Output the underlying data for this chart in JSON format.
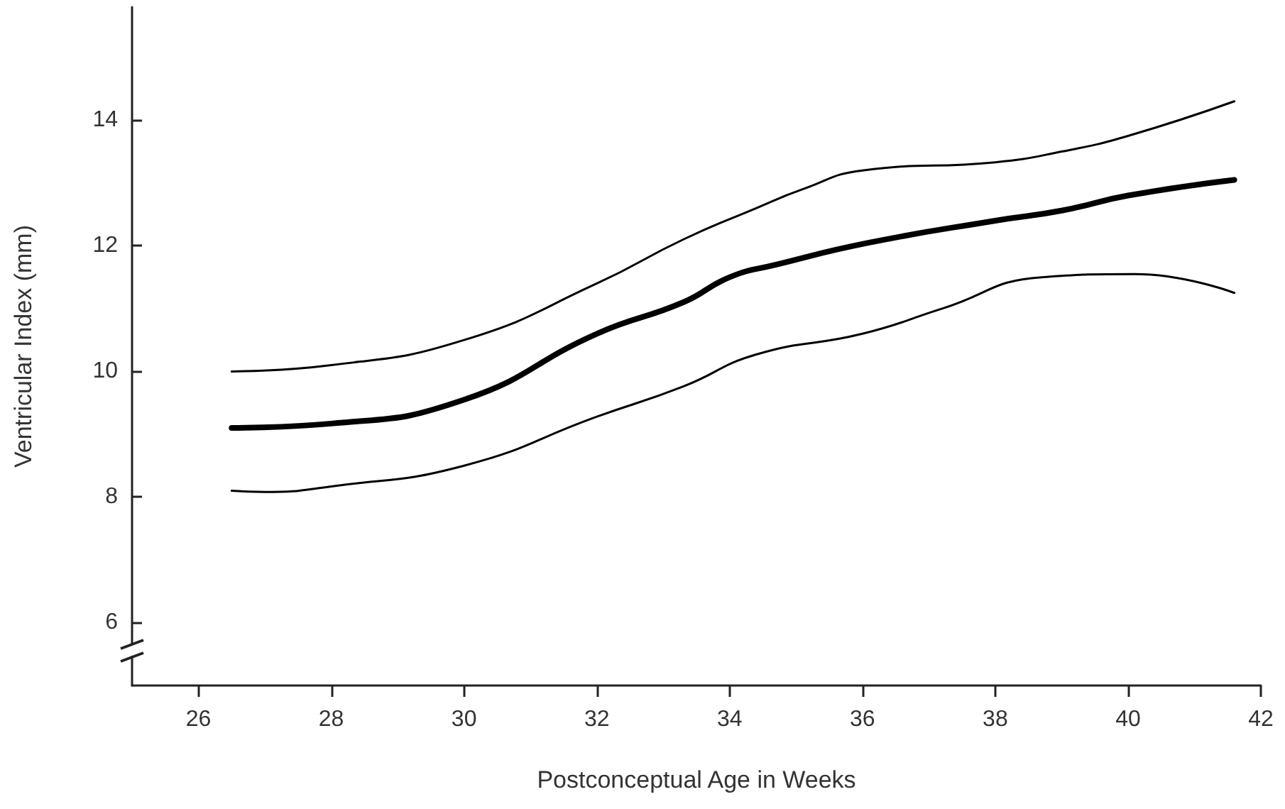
{
  "chart_data": {
    "type": "line",
    "xlabel": "Postconceptual Age in Weeks",
    "ylabel": "Ventricular Index (mm)",
    "xlim": [
      25,
      42
    ],
    "xticks": [
      26,
      28,
      30,
      32,
      34,
      36,
      38,
      40,
      42
    ],
    "ylim": [
      5,
      15.8
    ],
    "yticks": [
      6,
      8,
      10,
      12,
      14
    ],
    "grid": false,
    "marker": "none",
    "line_style": "solid",
    "series": [
      {
        "color": "#000000",
        "x": [
          26.5,
          28,
          30,
          32,
          33.3,
          34.4,
          35.1,
          36,
          38,
          39,
          40,
          41.6
        ],
        "values": [
          10.0,
          10.1,
          10.5,
          11.4,
          12.1,
          12.6,
          12.9,
          13.2,
          13.33,
          13.5,
          13.75,
          14.3
        ]
      },
      {
        "color": "#000000",
        "x": [
          26.5,
          28,
          30,
          32,
          33.3,
          34,
          34.7,
          36.1,
          38,
          39,
          40,
          41.6
        ],
        "values": [
          9.1,
          9.17,
          9.55,
          10.6,
          11.1,
          11.5,
          11.7,
          12.05,
          12.4,
          12.56,
          12.8,
          13.05
        ]
      },
      {
        "color": "#000000",
        "x": [
          26.5,
          27,
          28,
          30,
          32,
          33.3,
          34.4,
          36,
          37.2,
          38.7,
          40.1,
          41.6
        ],
        "values": [
          8.1,
          8.08,
          8.17,
          8.5,
          9.28,
          9.76,
          10.27,
          10.6,
          11.0,
          11.5,
          11.55,
          11.25
        ]
      }
    ]
  }
}
